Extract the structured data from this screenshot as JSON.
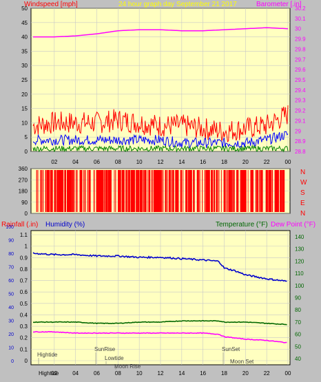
{
  "header": {
    "windspeed_label": "Windspeed [mph]",
    "graph_title": "24 hour graph day   September 21 2017",
    "barometer_label": "Barometer [.in]"
  },
  "lower_header": {
    "rainfall_label": "Rainfall (.in)",
    "humidity_label": "Humidity (%)",
    "temperature_label": "Temperature (°F)",
    "dewpoint_label": "Dew Point (°F)"
  },
  "colors": {
    "background": "#c0c0c0",
    "plot": "#ffffc0",
    "wind_gust": "#ff0000",
    "wind_avg": "#0000ff",
    "wind_min": "#008000",
    "barometer": "#ff00ff",
    "direction": "#ff0000",
    "humidity": "#0000cc",
    "temperature": "#006600",
    "dewpoint": "#ff00ff",
    "axis_text": "#000000"
  },
  "chart_data": [
    {
      "type": "line",
      "title": "24 hour graph day   September 21 2017",
      "x_ticks": [
        "02",
        "04",
        "06",
        "08",
        "10",
        "12",
        "14",
        "16",
        "18",
        "20",
        "22",
        "00"
      ],
      "y_left_label": "Windspeed [mph]",
      "y_left_ticks": [
        "0",
        "5",
        "10",
        "15",
        "20",
        "25",
        "30",
        "35",
        "40",
        "45",
        "50"
      ],
      "y_left_lim": [
        0,
        50
      ],
      "y_right_label": "Barometer [.in]",
      "y_right_ticks": [
        "28.8",
        "28.9",
        "29",
        "29.1",
        "29.2",
        "29.3",
        "29.4",
        "29.5",
        "29.6",
        "29.7",
        "29.8",
        "29.9",
        "30",
        "30.1",
        "30.2"
      ],
      "y_right_lim": [
        28.8,
        30.2
      ],
      "grid": true,
      "hours": [
        0,
        2,
        4,
        6,
        8,
        10,
        12,
        14,
        16,
        18,
        20,
        22,
        24
      ],
      "series": [
        {
          "name": "Barometer",
          "axis": "right",
          "values": [
            29.92,
            29.92,
            29.93,
            29.95,
            29.98,
            29.99,
            29.99,
            29.98,
            29.98,
            29.99,
            30.0,
            30.01,
            30.0
          ]
        },
        {
          "name": "Gust",
          "axis": "left",
          "values": [
            9,
            10,
            10,
            10,
            11,
            10,
            9,
            9,
            8,
            7,
            8,
            9,
            13
          ]
        },
        {
          "name": "Average",
          "axis": "left",
          "values": [
            4,
            4,
            4,
            4,
            4,
            4,
            4,
            3,
            3,
            3,
            3,
            4,
            6
          ]
        },
        {
          "name": "Minimum",
          "axis": "left",
          "values": [
            1,
            1,
            1,
            1,
            1,
            1,
            1,
            1,
            1,
            1,
            1,
            1,
            1
          ]
        }
      ]
    },
    {
      "type": "bar",
      "title": "",
      "y_left_ticks": [
        "0",
        "90",
        "180",
        "270",
        "360"
      ],
      "y_lim": [
        0,
        360
      ],
      "y_right_labels": [
        "N",
        "W",
        "S",
        "E",
        "N"
      ],
      "x_ticks": [
        "02",
        "04",
        "06",
        "08",
        "10",
        "12",
        "14",
        "16",
        "18",
        "20",
        "22",
        "00"
      ]
    },
    {
      "type": "line",
      "title": "",
      "x_ticks": [
        "Hightide",
        "02",
        "04",
        "06",
        "08",
        "10",
        "12",
        "14",
        "16",
        "18",
        "20",
        "22",
        "00"
      ],
      "rain_ticks": [
        "0",
        "0.1",
        "0.2",
        "0.3",
        "0.4",
        "0.5",
        "0.6",
        "0.7",
        "0.8",
        "0.9",
        "1",
        "1.1"
      ],
      "humidity_ticks": [
        "0",
        "10",
        "20",
        "30",
        "40",
        "50",
        "60",
        "70",
        "80",
        "90",
        "100"
      ],
      "temp_ticks": [
        "40",
        "50",
        "60",
        "70",
        "80",
        "90",
        "100",
        "110",
        "120",
        "130",
        "140"
      ],
      "humidity_lim": [
        0,
        100
      ],
      "temp_lim": [
        35,
        145
      ],
      "grid": true,
      "hours": [
        0,
        2,
        4,
        6,
        8,
        10,
        12,
        14,
        16,
        17.5,
        18,
        19,
        20,
        22,
        24
      ],
      "series": [
        {
          "name": "Humidity",
          "axis": "humidity",
          "values": [
            80,
            79,
            79,
            78,
            78,
            77,
            77,
            76,
            75,
            74,
            69,
            67,
            64,
            61,
            59
          ]
        },
        {
          "name": "Temperature",
          "axis": "temp",
          "values": [
            70,
            70,
            70,
            69,
            69,
            70,
            70,
            71,
            71,
            71,
            70,
            70,
            70,
            69,
            68
          ]
        },
        {
          "name": "Dew Point",
          "axis": "temp",
          "values": [
            62,
            62,
            61,
            61,
            61,
            61,
            61,
            61,
            61,
            60,
            58,
            57,
            56,
            55,
            53
          ]
        },
        {
          "name": "Rainfall",
          "axis": "rain",
          "values": [
            0,
            0,
            0,
            0,
            0,
            0,
            0,
            0,
            0,
            0,
            0,
            0,
            0,
            0,
            0
          ]
        }
      ],
      "annotations": [
        "Hightide",
        "SunRise",
        "Lowtide",
        "Moon Rise",
        "SunSet",
        "Moon Set"
      ]
    }
  ]
}
